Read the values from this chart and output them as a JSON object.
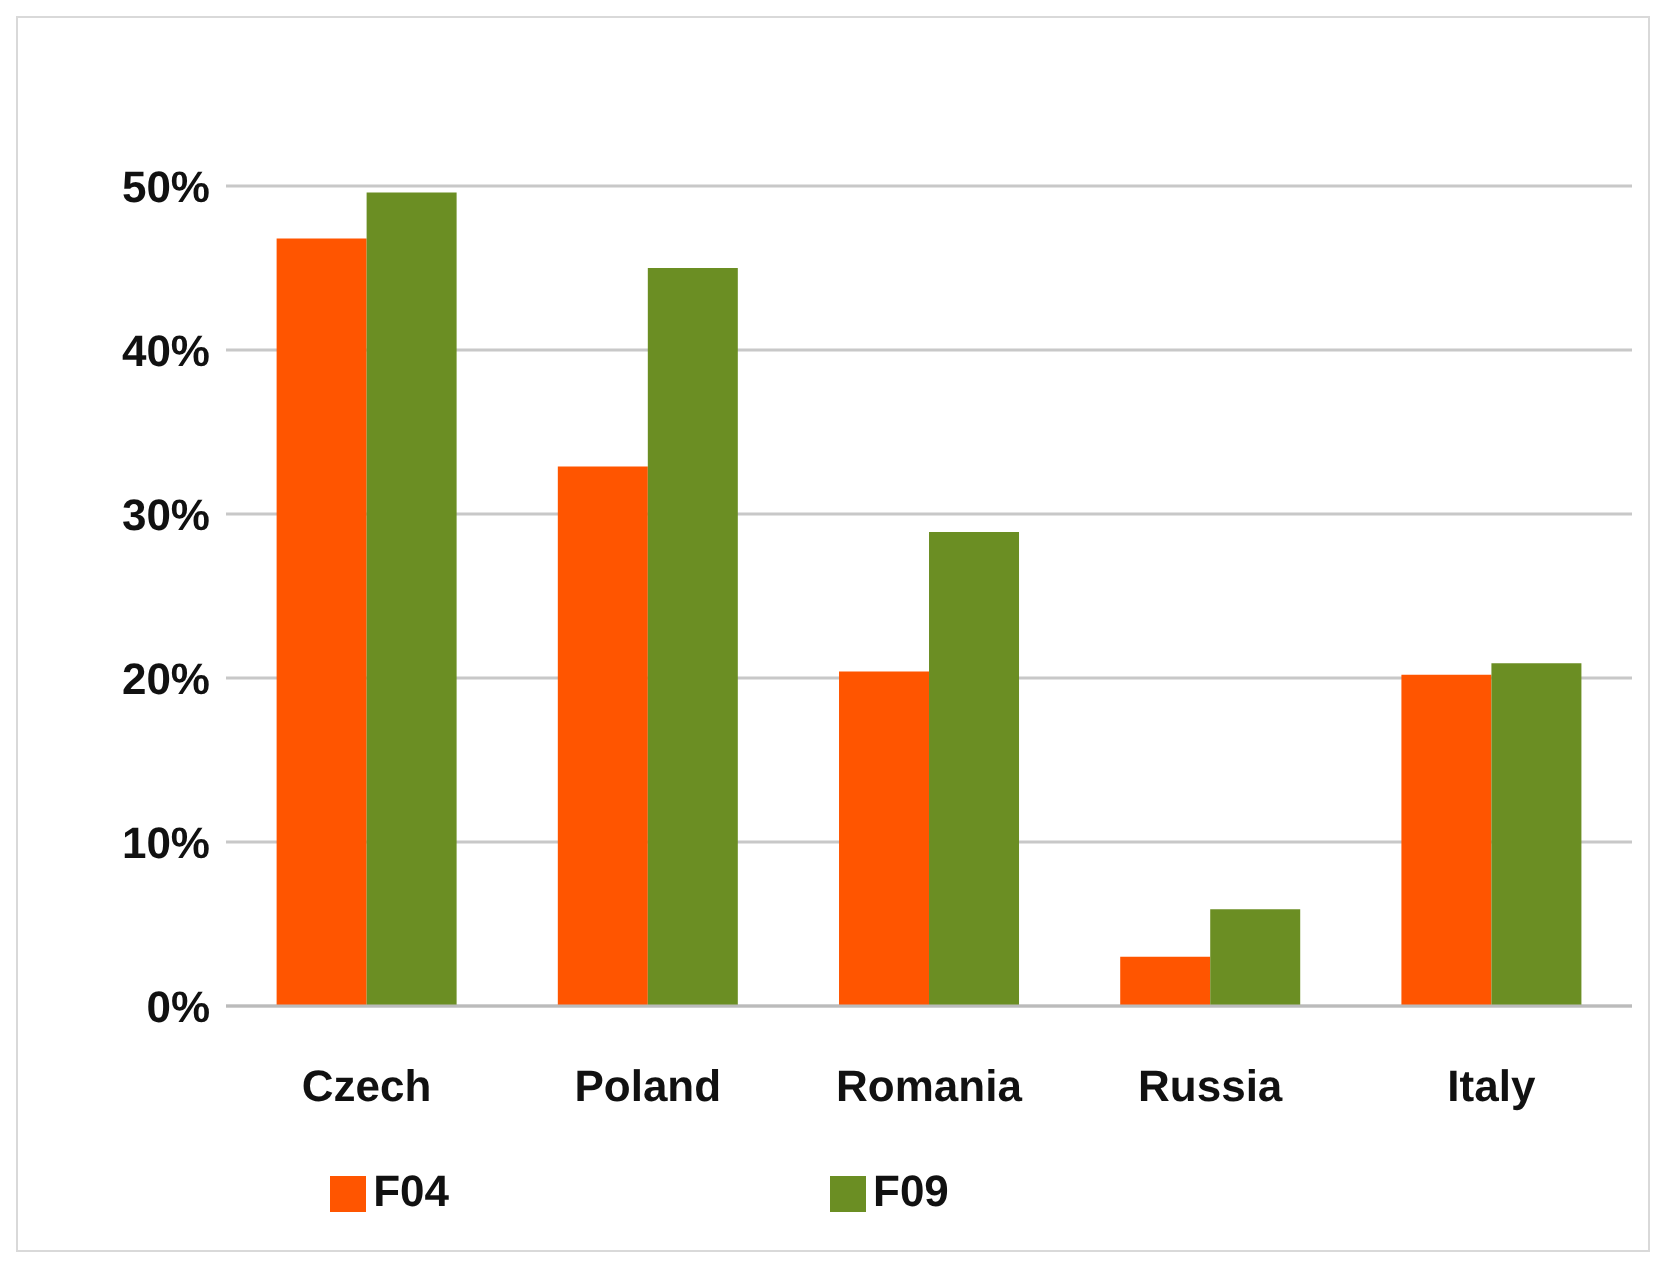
{
  "chart_data": {
    "type": "bar",
    "categories": [
      "Czech",
      "Poland",
      "Romania",
      "Russia",
      "Italy"
    ],
    "series": [
      {
        "name": "F04",
        "color": "#ff5500",
        "values": [
          46.8,
          32.9,
          20.4,
          3.0,
          20.2
        ]
      },
      {
        "name": "F09",
        "color": "#6b8e23",
        "values": [
          49.6,
          45.0,
          28.9,
          5.9,
          20.9
        ]
      }
    ],
    "ylim": [
      0,
      50
    ],
    "yticks": [
      {
        "value": 0,
        "label": "0%"
      },
      {
        "value": 10,
        "label": "10%"
      },
      {
        "value": 20,
        "label": "20%"
      },
      {
        "value": 30,
        "label": "30%"
      },
      {
        "value": 40,
        "label": "40%"
      },
      {
        "value": 50,
        "label": "50%"
      }
    ],
    "grid": "y",
    "legend": "bottom"
  }
}
